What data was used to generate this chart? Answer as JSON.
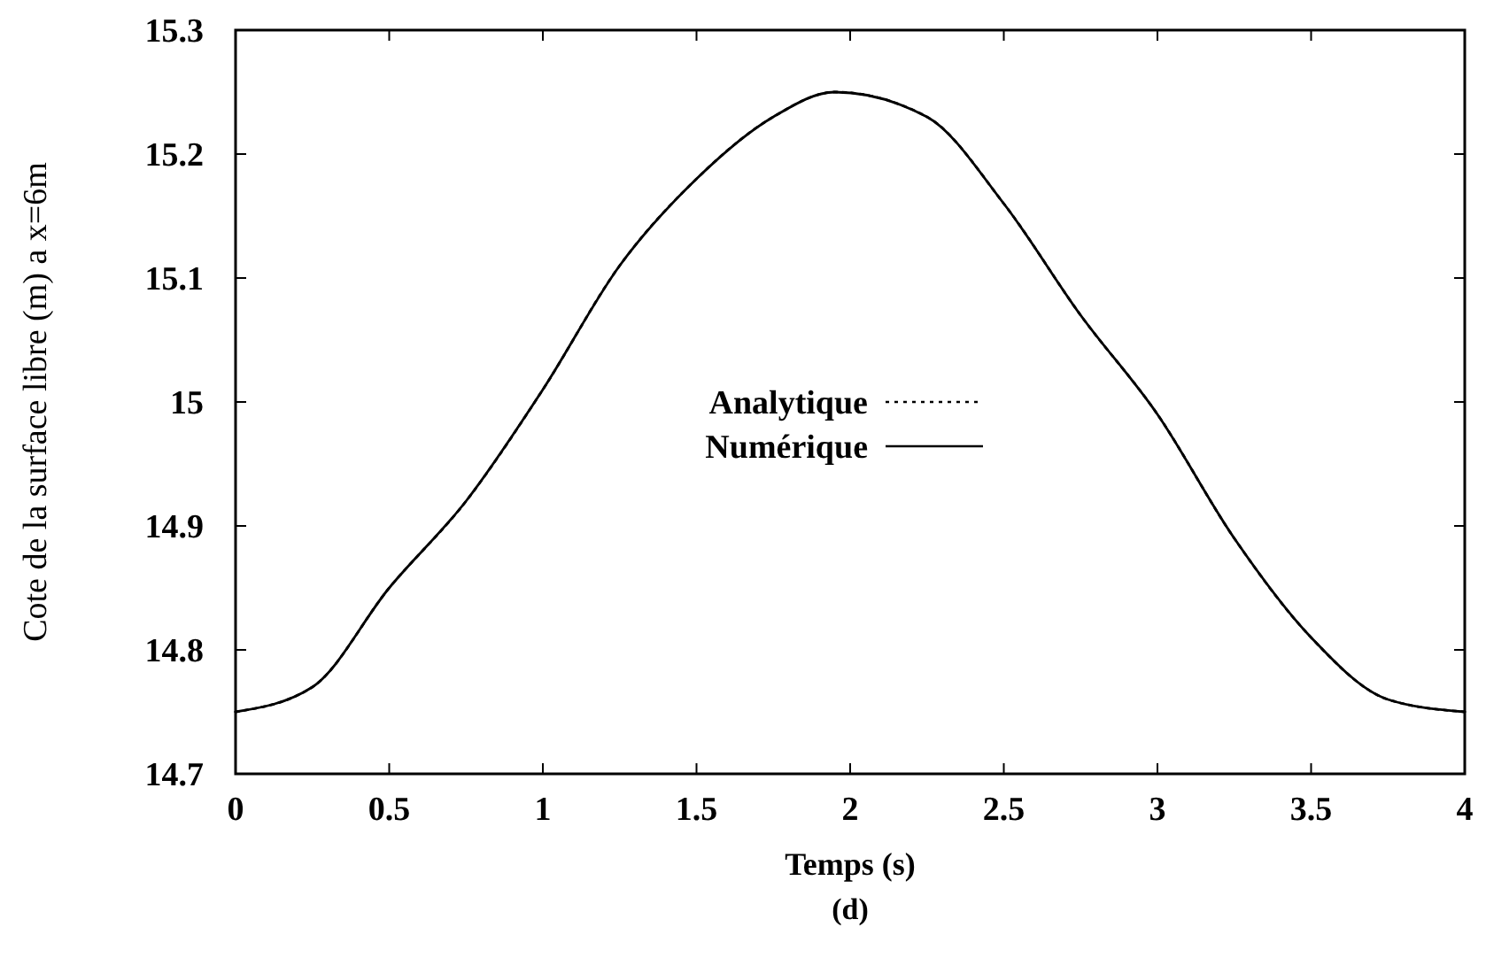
{
  "chart_data": {
    "type": "line",
    "xlabel": "Temps (s)",
    "ylabel": "Cote de la surface libre (m)  a x=6m",
    "annotations": [
      "(d)"
    ],
    "x": [
      0,
      0.25,
      0.5,
      0.75,
      1,
      1.25,
      1.5,
      1.75,
      1.95,
      2.25,
      2.5,
      2.75,
      3,
      3.25,
      3.5,
      3.75,
      4
    ],
    "series": [
      {
        "name": "Analytique",
        "color": "#000000",
        "line_style": "dotted",
        "values": [
          14.75,
          14.77,
          14.85,
          14.92,
          15.01,
          15.11,
          15.18,
          15.23,
          15.25,
          15.23,
          15.16,
          15.07,
          14.99,
          14.89,
          14.81,
          14.76,
          14.75
        ]
      },
      {
        "name": "Numérique",
        "color": "#000000",
        "line_style": "solid",
        "values": [
          14.75,
          14.77,
          14.85,
          14.92,
          15.01,
          15.11,
          15.18,
          15.23,
          15.25,
          15.23,
          15.16,
          15.07,
          14.99,
          14.89,
          14.81,
          14.76,
          14.75
        ]
      }
    ],
    "xlim": [
      0,
      4
    ],
    "xticks": [
      0,
      0.5,
      1,
      1.5,
      2,
      2.5,
      3,
      3.5,
      4
    ],
    "ylim": [
      14.7,
      15.3
    ],
    "yticks": [
      14.7,
      14.8,
      14.9,
      15,
      15.1,
      15.2,
      15.3
    ],
    "grid": false,
    "legend": "center"
  }
}
